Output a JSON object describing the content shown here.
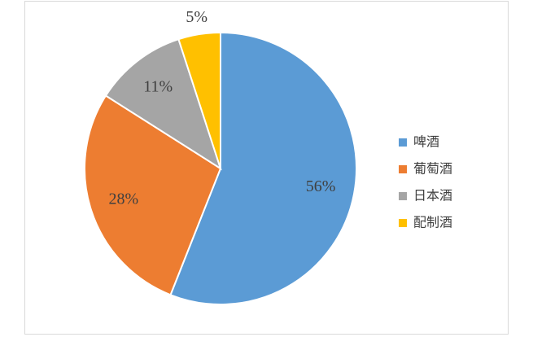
{
  "chart_data": {
    "type": "pie",
    "categories": [
      "啤酒",
      "葡萄酒",
      "日本酒",
      "配制酒"
    ],
    "values": [
      56,
      28,
      11,
      5
    ],
    "value_labels": [
      "56%",
      "28%",
      "11%",
      "5%"
    ],
    "colors": [
      "#5b9bd5",
      "#ed7d31",
      "#a5a5a5",
      "#ffc000"
    ],
    "legend": "right"
  }
}
